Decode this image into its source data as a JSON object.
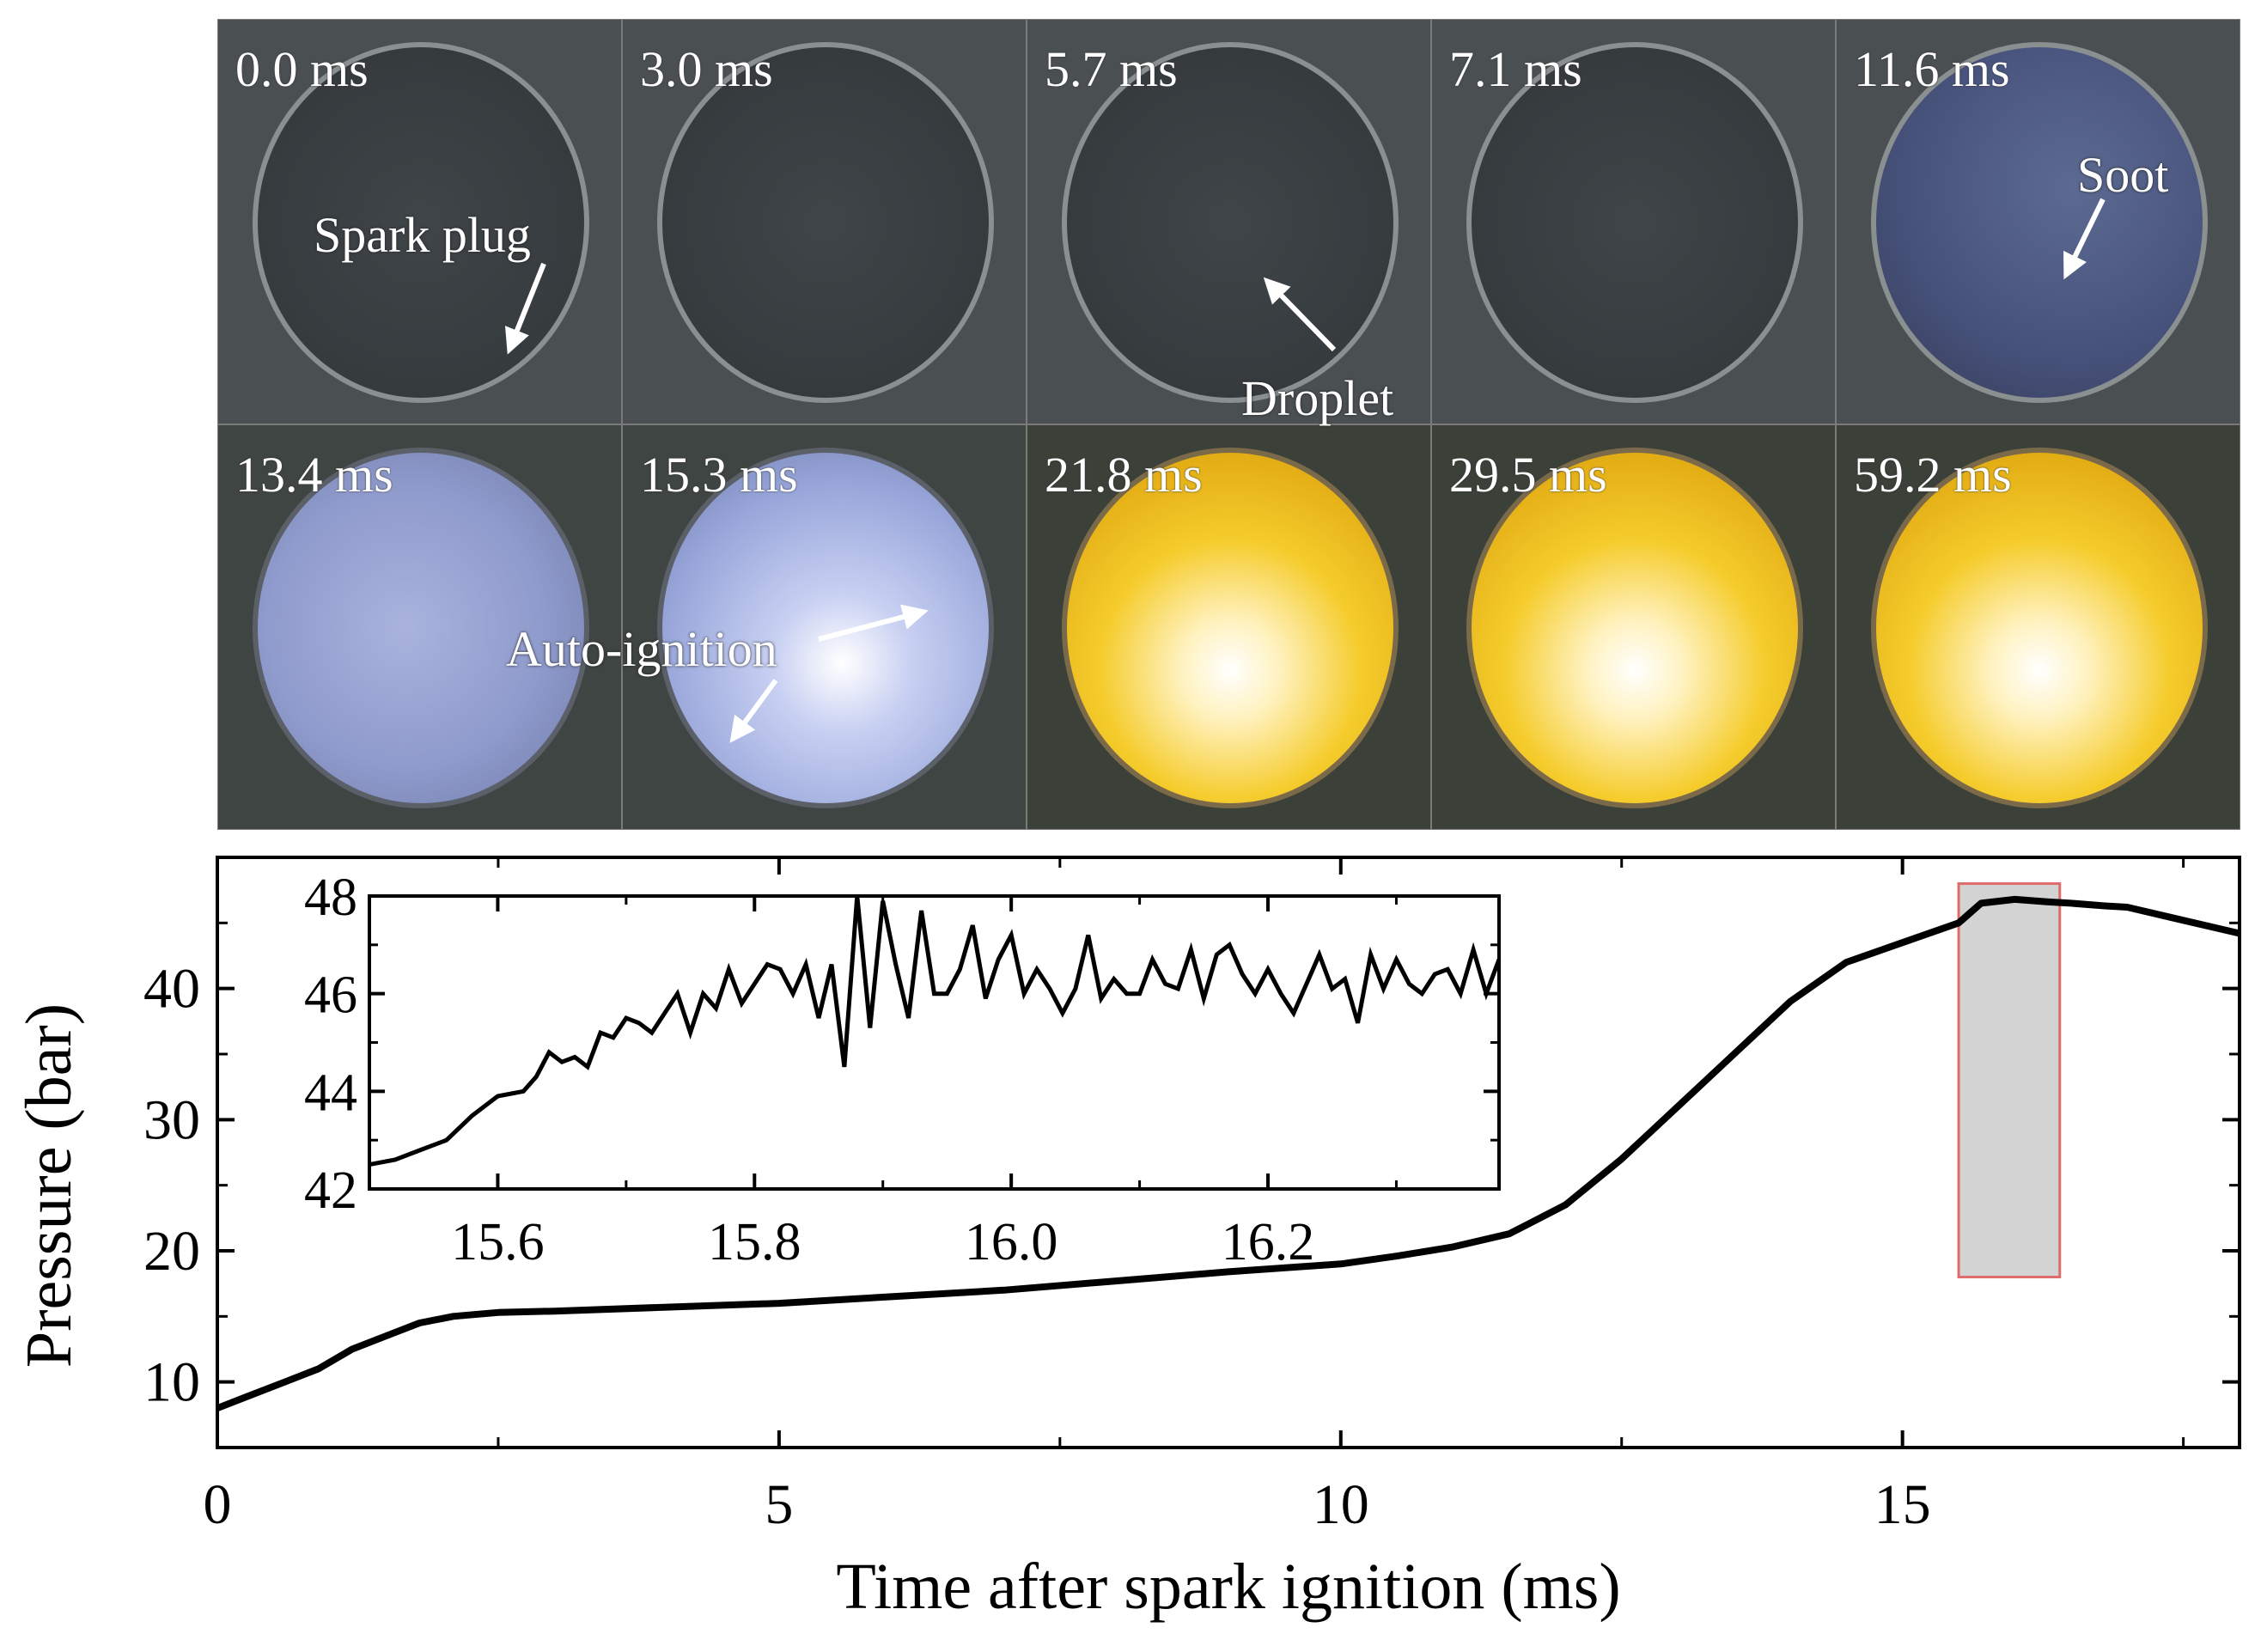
{
  "frames": [
    {
      "time": "0.0 ms",
      "style": "dark"
    },
    {
      "time": "3.0 ms",
      "style": "dark"
    },
    {
      "time": "5.7 ms",
      "style": "dark"
    },
    {
      "time": "7.1 ms",
      "style": "dark"
    },
    {
      "time": "11.6 ms",
      "style": "blue-dim"
    },
    {
      "time": "13.4 ms",
      "style": "blue"
    },
    {
      "time": "15.3 ms",
      "style": "blue-bright"
    },
    {
      "time": "21.8 ms",
      "style": "yellow"
    },
    {
      "time": "29.5 ms",
      "style": "yellow"
    },
    {
      "time": "59.2 ms",
      "style": "yellow"
    }
  ],
  "annotations": {
    "spark_plug": "Spark plug",
    "droplet": "Droplet",
    "soot": "Soot",
    "auto_ignition": "Auto-ignition"
  },
  "colors": {
    "line": "#000000",
    "highlight_fill": "#d3d3d3",
    "highlight_border": "#e06b6b",
    "frame_dark": "#3a3f44",
    "frame_blue": "#8e9cc6",
    "frame_yellow": "#f3c21c"
  },
  "chart_data": [
    {
      "type": "line",
      "name": "main",
      "xlabel": "Time after spark ignition (ms)",
      "ylabel": "Pressure (bar)",
      "xlim": [
        0,
        18
      ],
      "ylim": [
        5,
        50
      ],
      "xticks": [
        0,
        5,
        10,
        15
      ],
      "yticks": [
        10,
        20,
        30,
        40
      ],
      "x": [
        0,
        0.3,
        0.6,
        0.9,
        1.2,
        1.5,
        1.8,
        2.1,
        2.5,
        3,
        4,
        5,
        6,
        7,
        8,
        9,
        10,
        10.5,
        11,
        11.5,
        12,
        12.5,
        13,
        13.5,
        14,
        14.5,
        15,
        15.5,
        15.7,
        16,
        16.3,
        16.5,
        16.8,
        17,
        17.5,
        18
      ],
      "y": [
        8,
        9,
        10,
        11,
        12.5,
        13.5,
        14.5,
        15,
        15.3,
        15.4,
        15.7,
        16,
        16.5,
        17,
        17.7,
        18.4,
        19,
        19.6,
        20.3,
        21.3,
        23.5,
        27,
        31,
        35,
        39,
        42,
        43.5,
        45,
        46.5,
        46.8,
        46.6,
        46.5,
        46.3,
        46.2,
        45.2,
        44.2
      ],
      "highlight": {
        "x": [
          15.5,
          16.4
        ],
        "y": [
          18,
          48
        ]
      }
    },
    {
      "type": "line",
      "name": "inset",
      "xlim": [
        15.5,
        16.38
      ],
      "ylim": [
        42,
        48
      ],
      "xticks": [
        15.6,
        15.8,
        16.0,
        16.2
      ],
      "xtick_labels": [
        "15.6",
        "15.8",
        "16.0",
        "16.2"
      ],
      "yticks": [
        42,
        44,
        46,
        48
      ],
      "x": [
        15.5,
        15.52,
        15.54,
        15.56,
        15.58,
        15.6,
        15.62,
        15.63,
        15.64,
        15.65,
        15.66,
        15.67,
        15.68,
        15.69,
        15.7,
        15.71,
        15.72,
        15.73,
        15.74,
        15.75,
        15.76,
        15.77,
        15.78,
        15.79,
        15.8,
        15.81,
        15.82,
        15.83,
        15.84,
        15.85,
        15.86,
        15.87,
        15.88,
        15.89,
        15.9,
        15.91,
        15.92,
        15.93,
        15.94,
        15.95,
        15.96,
        15.97,
        15.98,
        15.99,
        16.0,
        16.01,
        16.02,
        16.03,
        16.04,
        16.05,
        16.06,
        16.07,
        16.08,
        16.09,
        16.1,
        16.11,
        16.12,
        16.13,
        16.14,
        16.15,
        16.16,
        16.17,
        16.18,
        16.19,
        16.2,
        16.21,
        16.22,
        16.23,
        16.24,
        16.25,
        16.26,
        16.27,
        16.28,
        16.29,
        16.3,
        16.31,
        16.32,
        16.33,
        16.34,
        16.35,
        16.36,
        16.37,
        16.38
      ],
      "y": [
        42.5,
        42.6,
        42.8,
        43.0,
        43.5,
        43.9,
        44.0,
        44.3,
        44.8,
        44.6,
        44.7,
        44.5,
        45.2,
        45.1,
        45.5,
        45.4,
        45.2,
        45.6,
        46.0,
        45.2,
        46.0,
        45.7,
        46.5,
        45.8,
        46.2,
        46.6,
        46.5,
        46.0,
        46.6,
        45.5,
        46.6,
        44.5,
        48.0,
        45.3,
        47.9,
        46.6,
        45.5,
        47.7,
        46.0,
        46.0,
        46.5,
        47.4,
        45.9,
        46.7,
        47.2,
        46.0,
        46.5,
        46.1,
        45.6,
        46.1,
        47.2,
        45.9,
        46.3,
        46.0,
        46.0,
        46.7,
        46.2,
        46.1,
        46.9,
        45.9,
        46.8,
        47.0,
        46.4,
        46.0,
        46.5,
        46.0,
        45.6,
        46.2,
        46.8,
        46.1,
        46.3,
        45.4,
        46.8,
        46.1,
        46.7,
        46.2,
        46.0,
        46.4,
        46.5,
        46.0,
        46.9,
        46.0,
        46.7
      ]
    }
  ]
}
